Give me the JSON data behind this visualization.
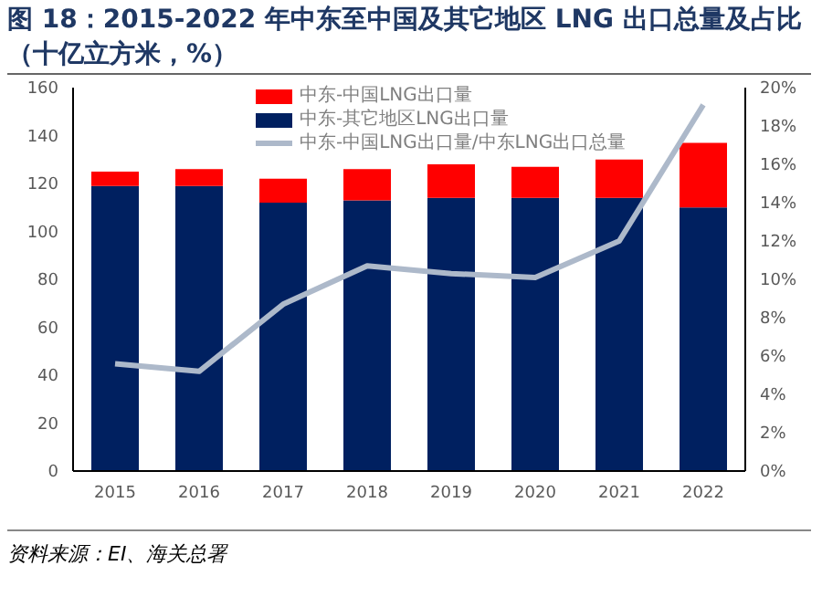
{
  "chart_data": {
    "type": "bar",
    "title": "图 18：2015-2022 年中东至中国及其它地区 LNG 出口总量及占比（十亿立方米，%）",
    "categories": [
      "2015",
      "2016",
      "2017",
      "2018",
      "2019",
      "2020",
      "2021",
      "2022"
    ],
    "stacked": true,
    "series": [
      {
        "name": "中东-其它地区LNG出口量",
        "color": "#002060",
        "values": [
          119,
          119,
          112,
          113,
          114,
          114,
          114,
          110
        ]
      },
      {
        "name": "中东-中国LNG出口量",
        "color": "#ff0000",
        "values": [
          6,
          7,
          10,
          13,
          14,
          13,
          16,
          27
        ]
      },
      {
        "name": "中东-中国LNG出口量/中东LNG出口总量",
        "type": "line",
        "axis": "y2",
        "color": "#adb9ca",
        "values": [
          5.6,
          5.2,
          8.7,
          10.7,
          10.3,
          10.1,
          12.0,
          19.1
        ]
      }
    ],
    "ylim": [
      0,
      160
    ],
    "yticks": [
      0,
      20,
      40,
      60,
      80,
      100,
      120,
      140,
      160
    ],
    "y2lim": [
      0,
      20
    ],
    "y2ticks": [
      {
        "value": 0,
        "label": "0%"
      },
      {
        "value": 2,
        "label": "2%"
      },
      {
        "value": 4,
        "label": "4%"
      },
      {
        "value": 6,
        "label": "6%"
      },
      {
        "value": 8,
        "label": "8%"
      },
      {
        "value": 10,
        "label": "10%"
      },
      {
        "value": 12,
        "label": "12%"
      },
      {
        "value": 14,
        "label": "14%"
      },
      {
        "value": 16,
        "label": "16%"
      },
      {
        "value": 18,
        "label": "18%"
      },
      {
        "value": 20,
        "label": "20%"
      }
    ],
    "legend": "top",
    "marker": "none",
    "annotations": [
      "资料来源：EI、海关总署"
    ]
  }
}
